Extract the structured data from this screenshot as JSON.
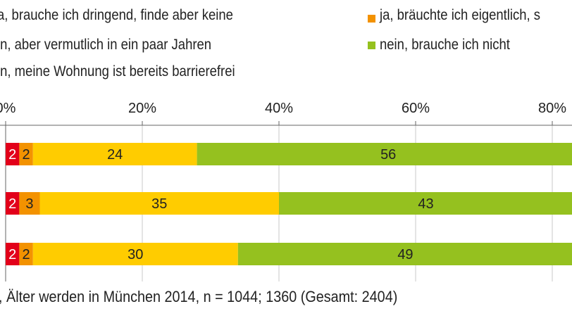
{
  "colors": {
    "red": "#e2001a",
    "orange": "#f39200",
    "yellow": "#ffcc00",
    "green": "#95c11f",
    "grid": "#c8c8c8",
    "axis": "#666666",
    "text": "#222222"
  },
  "legend": [
    {
      "label": "a, brauche ich dringend, finde aber keine",
      "color": "red"
    },
    {
      "label": "ja, bräuchte ich eigentlich, s",
      "color": "orange"
    },
    {
      "label": "in, aber vermutlich in ein paar Jahren",
      "color": "yellow"
    },
    {
      "label": "nein, brauche ich nicht",
      "color": "green"
    },
    {
      "label": "in, meine Wohnung ist bereits barrierefrei",
      "color": "none"
    }
  ],
  "chart_data": {
    "type": "bar",
    "orientation": "horizontal",
    "stacked": true,
    "x_axis_unit": "percent",
    "xlim": [
      0,
      100
    ],
    "ticks": [
      {
        "value": 0,
        "label": "0%"
      },
      {
        "value": 20,
        "label": "20%"
      },
      {
        "value": 40,
        "label": "40%"
      },
      {
        "value": 60,
        "label": "60%"
      },
      {
        "value": 80,
        "label": "80%"
      }
    ],
    "categories": [
      "",
      "",
      ""
    ],
    "series": [
      {
        "name": "a, brauche ich dringend, finde aber keine",
        "color": "red",
        "values": [
          2,
          2,
          2
        ]
      },
      {
        "name": "ja, bräuchte ich eigentlich, s",
        "color": "orange",
        "values": [
          2,
          3,
          2
        ]
      },
      {
        "name": "in, aber vermutlich in ein paar Jahren",
        "color": "yellow",
        "values": [
          24,
          35,
          30
        ]
      },
      {
        "name": "nein, brauche ich nicht",
        "color": "green",
        "values": [
          56,
          43,
          49
        ]
      }
    ]
  },
  "source": ", Älter werden in München 2014, n = 1044; 1360 (Gesamt: 2404)"
}
